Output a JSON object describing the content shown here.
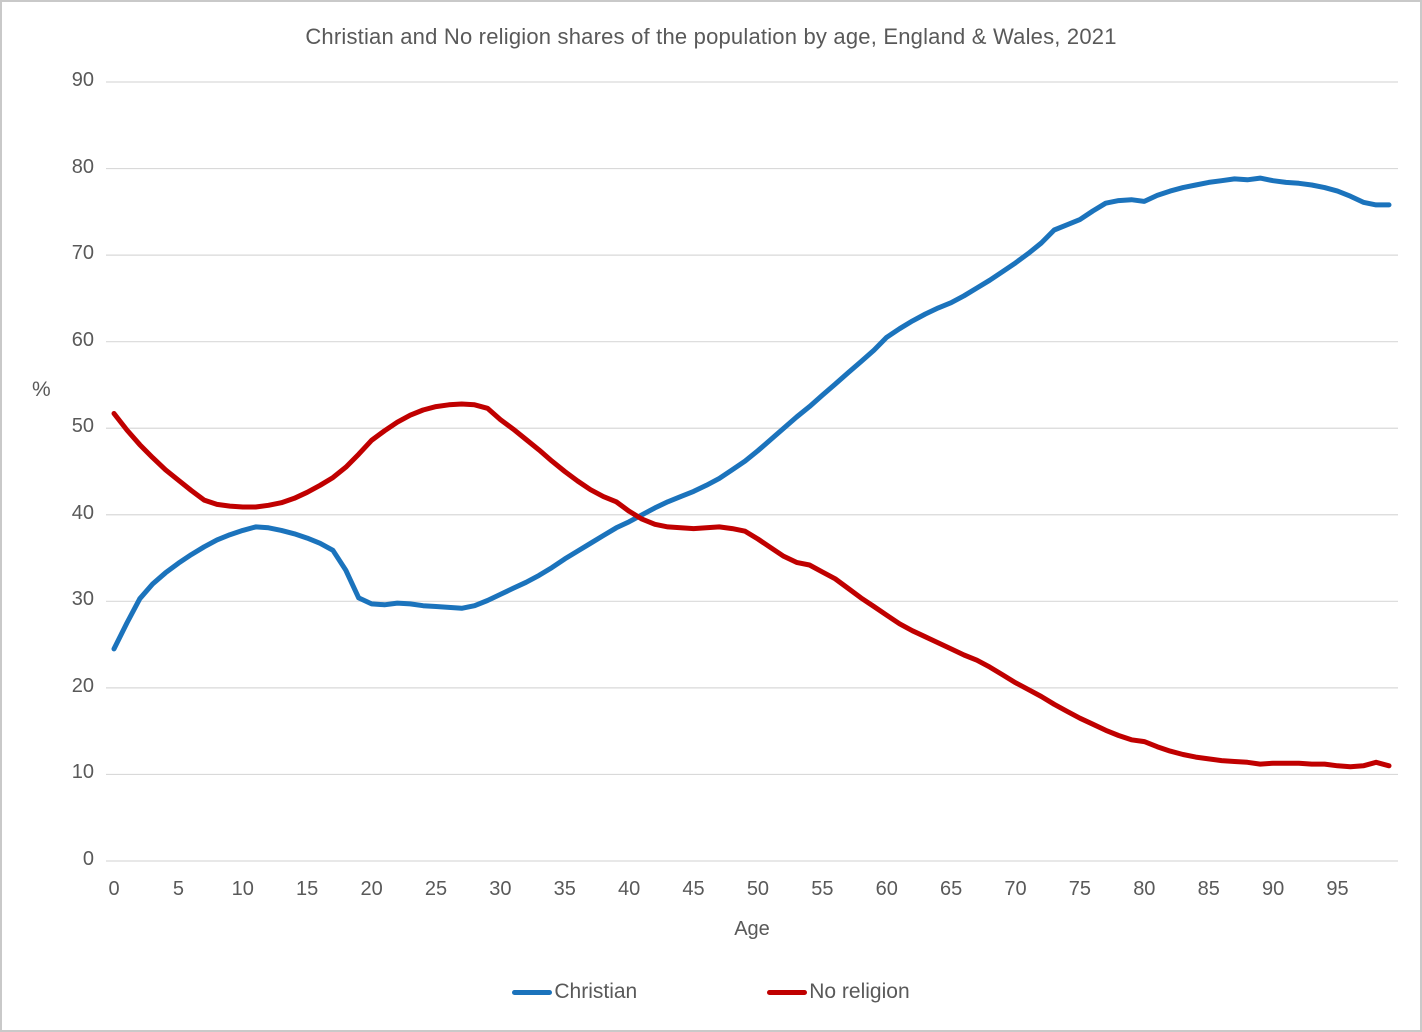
{
  "chart_data": {
    "type": "line",
    "title": "Christian and No religion shares of the population by age, England & Wales, 2021",
    "xlabel": "Age",
    "ylabel": "%",
    "xlim": [
      0,
      99
    ],
    "ylim": [
      0,
      90
    ],
    "grid": true,
    "legend_position": "bottom",
    "xticks": [
      0,
      5,
      10,
      15,
      20,
      25,
      30,
      35,
      40,
      45,
      50,
      55,
      60,
      65,
      70,
      75,
      80,
      85,
      90,
      95
    ],
    "yticks": [
      0,
      10,
      20,
      30,
      40,
      50,
      60,
      70,
      80,
      90
    ],
    "x": [
      0,
      1,
      2,
      3,
      4,
      5,
      6,
      7,
      8,
      9,
      10,
      11,
      12,
      13,
      14,
      15,
      16,
      17,
      18,
      19,
      20,
      21,
      22,
      23,
      24,
      25,
      26,
      27,
      28,
      29,
      30,
      31,
      32,
      33,
      34,
      35,
      36,
      37,
      38,
      39,
      40,
      41,
      42,
      43,
      44,
      45,
      46,
      47,
      48,
      49,
      50,
      51,
      52,
      53,
      54,
      55,
      56,
      57,
      58,
      59,
      60,
      61,
      62,
      63,
      64,
      65,
      66,
      67,
      68,
      69,
      70,
      71,
      72,
      73,
      74,
      75,
      76,
      77,
      78,
      79,
      80,
      81,
      82,
      83,
      84,
      85,
      86,
      87,
      88,
      89,
      90,
      91,
      92,
      93,
      94,
      95,
      96,
      97,
      98,
      99
    ],
    "series": [
      {
        "name": "Christian",
        "color": "#1b73bc",
        "values": [
          24.5,
          27.5,
          30.3,
          32.0,
          33.3,
          34.4,
          35.4,
          36.3,
          37.1,
          37.7,
          38.2,
          38.6,
          38.5,
          38.2,
          37.8,
          37.3,
          36.7,
          35.9,
          33.6,
          30.4,
          29.7,
          29.6,
          29.8,
          29.7,
          29.5,
          29.4,
          29.3,
          29.2,
          29.5,
          30.1,
          30.8,
          31.5,
          32.2,
          33.0,
          33.9,
          34.9,
          35.8,
          36.7,
          37.6,
          38.5,
          39.2,
          40.0,
          40.8,
          41.5,
          42.1,
          42.7,
          43.4,
          44.2,
          45.2,
          46.2,
          47.4,
          48.7,
          50.0,
          51.3,
          52.5,
          53.8,
          55.1,
          56.4,
          57.7,
          59.0,
          60.5,
          61.5,
          62.4,
          63.2,
          63.9,
          64.5,
          65.3,
          66.2,
          67.1,
          68.1,
          69.1,
          70.2,
          71.4,
          72.9,
          73.5,
          74.1,
          75.1,
          76.0,
          76.3,
          76.4,
          76.2,
          76.9,
          77.4,
          77.8,
          78.1,
          78.4,
          78.6,
          78.8,
          78.7,
          78.9,
          78.6,
          78.4,
          78.3,
          78.1,
          77.8,
          77.4,
          76.8,
          76.1,
          75.8,
          75.8
        ]
      },
      {
        "name": "No religion",
        "color": "#c00000",
        "values": [
          51.7,
          49.8,
          48.1,
          46.6,
          45.2,
          44.0,
          42.8,
          41.7,
          41.2,
          41.0,
          40.9,
          40.9,
          41.1,
          41.4,
          41.9,
          42.6,
          43.4,
          44.3,
          45.5,
          47.0,
          48.6,
          49.7,
          50.7,
          51.5,
          52.1,
          52.5,
          52.7,
          52.8,
          52.7,
          52.3,
          51.0,
          49.9,
          48.7,
          47.5,
          46.2,
          45.0,
          43.9,
          42.9,
          42.1,
          41.5,
          40.4,
          39.5,
          38.9,
          38.6,
          38.5,
          38.4,
          38.5,
          38.6,
          38.4,
          38.1,
          37.2,
          36.2,
          35.2,
          34.5,
          34.2,
          33.4,
          32.6,
          31.5,
          30.4,
          29.4,
          28.4,
          27.4,
          26.6,
          25.9,
          25.2,
          24.5,
          23.8,
          23.2,
          22.4,
          21.5,
          20.6,
          19.8,
          19.0,
          18.1,
          17.3,
          16.5,
          15.8,
          15.1,
          14.5,
          14.0,
          13.8,
          13.2,
          12.7,
          12.3,
          12.0,
          11.8,
          11.6,
          11.5,
          11.4,
          11.2,
          11.3,
          11.3,
          11.3,
          11.2,
          11.2,
          11.0,
          10.9,
          11.0,
          11.4,
          11.0
        ]
      }
    ],
    "grid_color": "#d9d9d9",
    "text_color": "#595959"
  }
}
